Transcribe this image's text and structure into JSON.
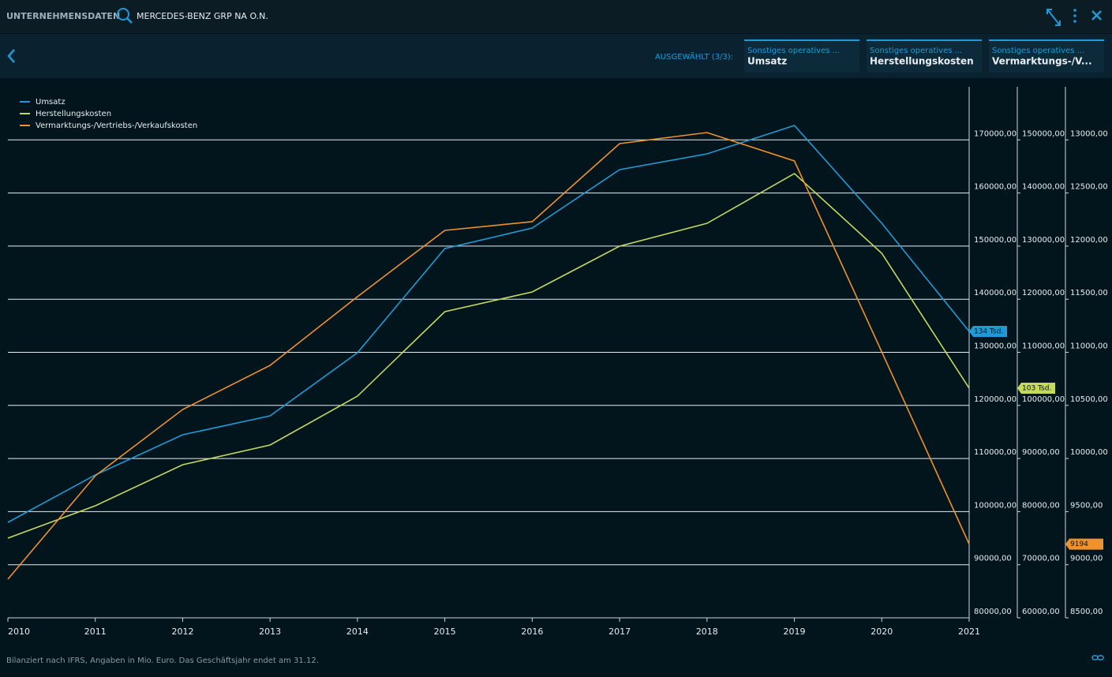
{
  "header": {
    "section": "UNTERNEHMENSDATEN",
    "instrument": "MERCEDES-BENZ GRP NA O.N."
  },
  "selection": {
    "label": "AUSGEWÄHLT (3/3):",
    "tabs": [
      {
        "group": "Sonstiges operatives ...",
        "name": "Umsatz"
      },
      {
        "group": "Sonstiges operatives ...",
        "name": "Herstellungskosten"
      },
      {
        "group": "Sonstiges operatives ...",
        "name": "Vermarktungs-/V..."
      }
    ]
  },
  "chart_data": {
    "type": "line",
    "legend": "top-left",
    "grid": true,
    "categories": [
      "2010",
      "2011",
      "2012",
      "2013",
      "2014",
      "2015",
      "2016",
      "2017",
      "2018",
      "2019",
      "2020",
      "2021"
    ],
    "series": [
      {
        "name": "Umsatz",
        "color": "#1e9bd7",
        "axis": "y",
        "values": [
          97980,
          106900,
          114470,
          118040,
          129920,
          149540,
          153400,
          164400,
          167370,
          172720,
          154290,
          133940
        ],
        "value_labels": [
          null,
          null,
          null,
          null,
          null,
          null,
          null,
          null,
          null,
          null,
          null,
          "134 Tsd."
        ]
      },
      {
        "name": "Herstellungskosten",
        "color": "#c5d95a",
        "axis": "y2",
        "values": [
          75010,
          81100,
          88830,
          92540,
          101750,
          117650,
          121370,
          129990,
          134290,
          143660,
          128650,
          103240
        ],
        "value_labels": [
          null,
          null,
          null,
          null,
          null,
          null,
          null,
          null,
          null,
          null,
          null,
          "103 Tsd."
        ]
      },
      {
        "name": "Vermarktungs-/Vertriebs-/Verkaufskosten",
        "color": "#f0922b",
        "axis": "y3",
        "values": [
          8864,
          9837,
          10461,
          10877,
          11524,
          12148,
          12230,
          12965,
          13069,
          12802,
          11004,
          9194
        ],
        "value_labels": [
          null,
          null,
          null,
          null,
          null,
          null,
          null,
          null,
          null,
          null,
          null,
          "9194"
        ]
      }
    ],
    "ylim": [
      80000,
      180000
    ],
    "yticks": [
      {
        "value": 80000,
        "label": "80000,00"
      },
      {
        "value": 90000,
        "label": "90000,00"
      },
      {
        "value": 100000,
        "label": "100000,00"
      },
      {
        "value": 110000,
        "label": "110000,00"
      },
      {
        "value": 120000,
        "label": "120000,00"
      },
      {
        "value": 130000,
        "label": "130000,00"
      },
      {
        "value": 140000,
        "label": "140000,00"
      },
      {
        "value": 150000,
        "label": "150000,00"
      },
      {
        "value": 160000,
        "label": "160000,00"
      },
      {
        "value": 170000,
        "label": "170000,00"
      }
    ],
    "y2lim": [
      60000,
      160000
    ],
    "y2ticks": [
      {
        "value": 60000,
        "label": "60000,00"
      },
      {
        "value": 70000,
        "label": "70000,00"
      },
      {
        "value": 80000,
        "label": "80000,00"
      },
      {
        "value": 90000,
        "label": "90000,00"
      },
      {
        "value": 100000,
        "label": "100000,00"
      },
      {
        "value": 110000,
        "label": "110000,00"
      },
      {
        "value": 120000,
        "label": "120000,00"
      },
      {
        "value": 130000,
        "label": "130000,00"
      },
      {
        "value": 140000,
        "label": "140000,00"
      },
      {
        "value": 150000,
        "label": "150000,00"
      }
    ],
    "y3lim": [
      8500,
      13500
    ],
    "y3ticks": [
      {
        "value": 8500,
        "label": "8500,00"
      },
      {
        "value": 9000,
        "label": "9000,00"
      },
      {
        "value": 9500,
        "label": "9500,00"
      },
      {
        "value": 10000,
        "label": "10000,00"
      },
      {
        "value": 10500,
        "label": "10500,00"
      },
      {
        "value": 11000,
        "label": "11000,00"
      },
      {
        "value": 11500,
        "label": "11500,00"
      },
      {
        "value": 12000,
        "label": "12000,00"
      },
      {
        "value": 12500,
        "label": "12500,00"
      },
      {
        "value": 13000,
        "label": "13000,00"
      }
    ]
  },
  "footer": {
    "note": "Bilanziert nach IFRS, Angaben in Mio. Euro. Das Geschäftsjahr endet am 31.12."
  }
}
